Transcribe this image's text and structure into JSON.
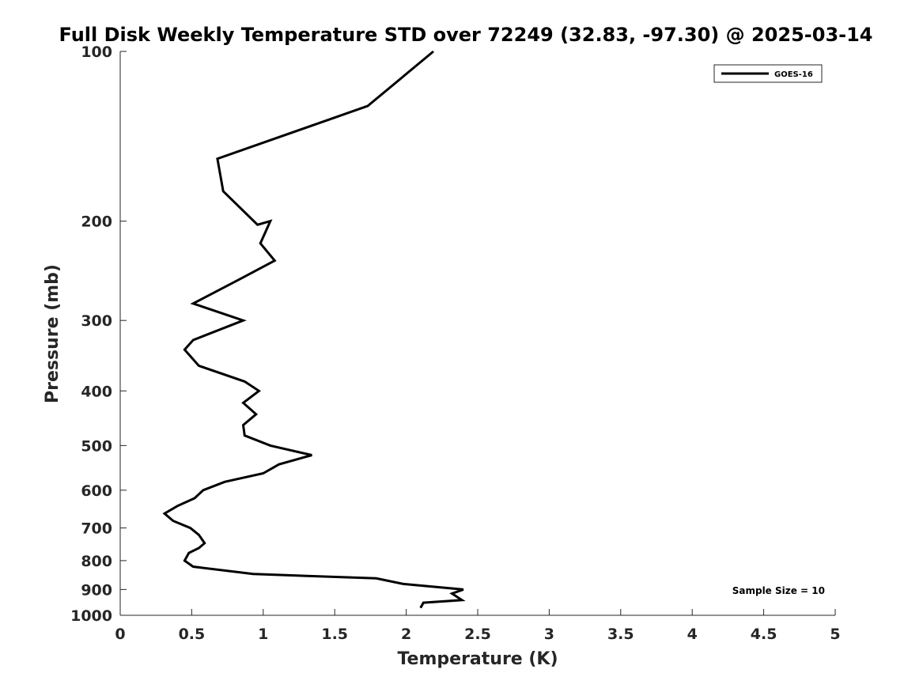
{
  "chart_data": {
    "type": "line",
    "title": "Full Disk Weekly Temperature STD over 72249 (32.83, -97.30) @ 2025-03-14",
    "xlabel": "Temperature (K)",
    "ylabel": "Pressure (mb)",
    "xlim": [
      0,
      5
    ],
    "ylim": [
      100,
      1000
    ],
    "yscale": "log",
    "yreversed": true,
    "grid": false,
    "legend_position": "top-right",
    "x_ticks": [
      "0",
      "0.5",
      "1",
      "1.5",
      "2",
      "2.5",
      "3",
      "3.5",
      "4",
      "4.5",
      "5"
    ],
    "y_ticks": [
      "100",
      "200",
      "300",
      "400",
      "500",
      "600",
      "700",
      "800",
      "900",
      "1000"
    ],
    "annotation": "Sample Size = 10",
    "series": [
      {
        "name": "GOES-16",
        "color": "#000000",
        "points": [
          [
            2.19,
            100
          ],
          [
            1.73,
            125
          ],
          [
            0.68,
            155
          ],
          [
            0.72,
            177
          ],
          [
            0.96,
            203
          ],
          [
            1.05,
            200
          ],
          [
            0.98,
            219
          ],
          [
            1.08,
            235
          ],
          [
            0.83,
            254
          ],
          [
            0.51,
            280
          ],
          [
            0.86,
            300
          ],
          [
            0.51,
            325
          ],
          [
            0.45,
            338
          ],
          [
            0.55,
            361
          ],
          [
            0.87,
            385
          ],
          [
            0.97,
            400
          ],
          [
            0.86,
            420
          ],
          [
            0.95,
            440
          ],
          [
            0.86,
            460
          ],
          [
            0.87,
            480
          ],
          [
            1.05,
            500
          ],
          [
            1.34,
            520
          ],
          [
            1.11,
            540
          ],
          [
            1.0,
            560
          ],
          [
            0.73,
            580
          ],
          [
            0.58,
            600
          ],
          [
            0.52,
            620
          ],
          [
            0.4,
            640
          ],
          [
            0.31,
            660
          ],
          [
            0.37,
            680
          ],
          [
            0.49,
            700
          ],
          [
            0.55,
            720
          ],
          [
            0.59,
            745
          ],
          [
            0.55,
            760
          ],
          [
            0.48,
            775
          ],
          [
            0.45,
            800
          ],
          [
            0.51,
            820
          ],
          [
            0.93,
            845
          ],
          [
            1.79,
            860
          ],
          [
            1.98,
            880
          ],
          [
            2.4,
            900
          ],
          [
            2.32,
            915
          ],
          [
            2.39,
            940
          ],
          [
            2.12,
            950
          ],
          [
            2.1,
            970
          ]
        ]
      }
    ]
  }
}
